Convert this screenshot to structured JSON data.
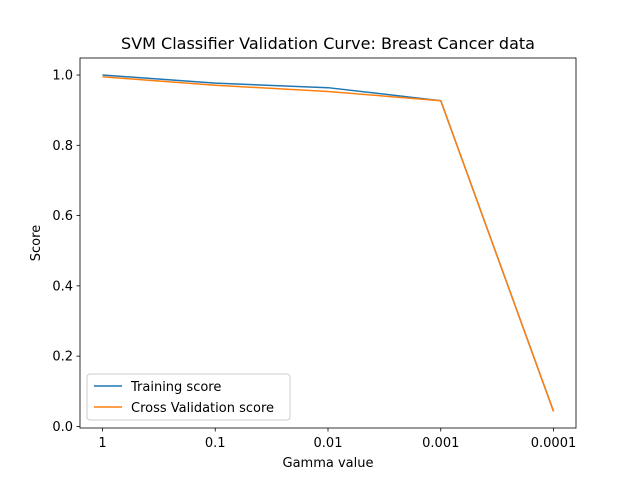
{
  "chart_data": {
    "type": "line",
    "title": "SVM Classifier Validation Curve: Breast Cancer data",
    "xlabel": "Gamma value",
    "ylabel": "Score",
    "categories": [
      "1",
      "0.1",
      "0.01",
      "0.001",
      "0.0001"
    ],
    "ylim": [
      0.0,
      1.05
    ],
    "yticks": [
      0.0,
      0.2,
      0.4,
      0.6,
      0.8,
      1.0
    ],
    "ytick_labels": [
      "0.0",
      "0.2",
      "0.4",
      "0.6",
      "0.8",
      "1.0"
    ],
    "grid": false,
    "legend_position": "lower-left",
    "series": [
      {
        "name": "Training score",
        "color": "#1f77b4",
        "values": [
          1.0,
          0.977,
          0.964,
          0.927,
          0.043
        ]
      },
      {
        "name": "Cross Validation score",
        "color": "#ff7f0e",
        "values": [
          0.995,
          0.971,
          0.953,
          0.927,
          0.043
        ]
      }
    ]
  }
}
